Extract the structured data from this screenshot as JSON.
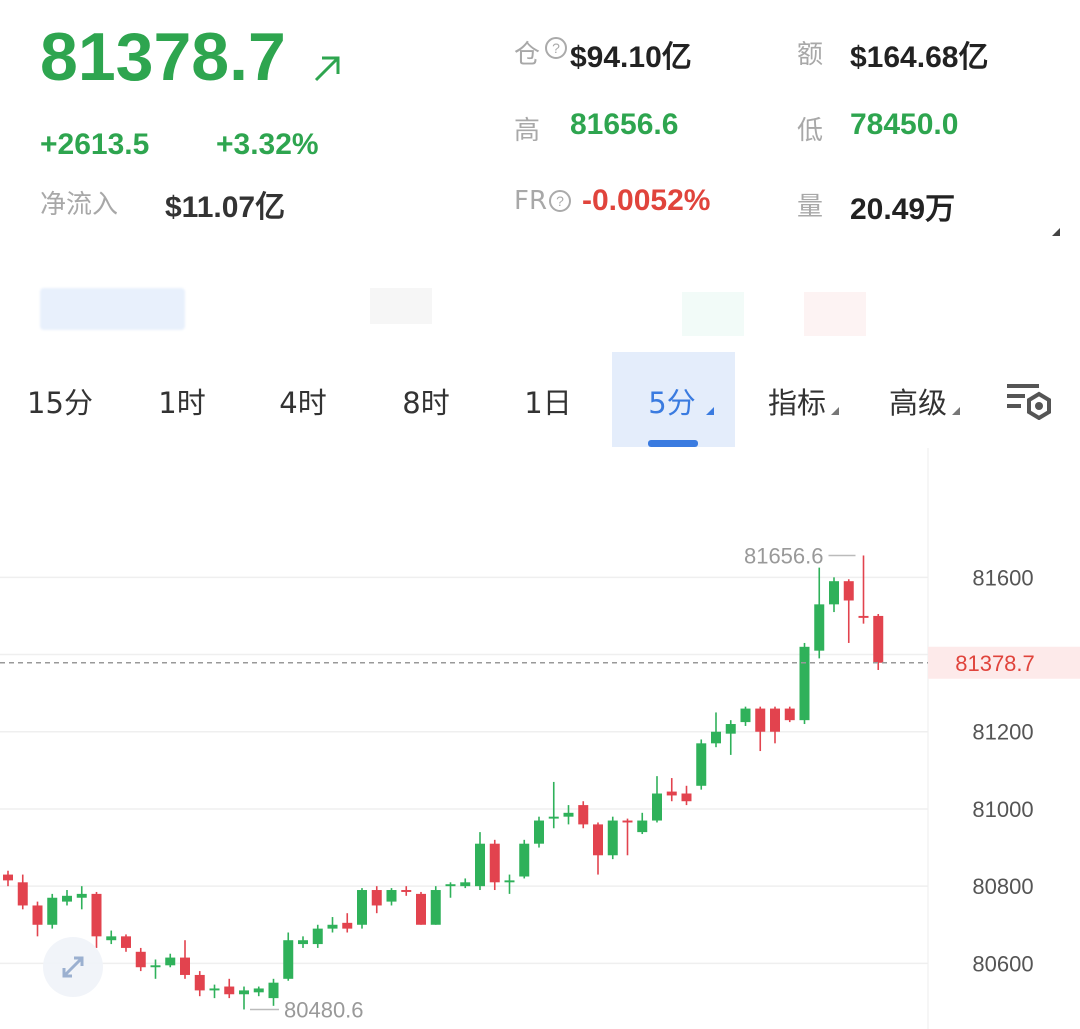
{
  "header": {
    "price": 81378.7,
    "change": "+2613.5",
    "change_pct": "+3.32%",
    "net_inflow_label": "净流入",
    "net_inflow": "$11.07亿",
    "stats": [
      {
        "label": "仓",
        "value": "$94.10亿",
        "color": "#222222"
      },
      {
        "label": "额",
        "value": "$164.68亿",
        "color": "#222222"
      },
      {
        "label": "高",
        "value": "81656.6",
        "color": "#2ea54f"
      },
      {
        "label": "低",
        "value": "78450.0",
        "color": "#2ea54f"
      },
      {
        "label": "FR",
        "value": "-0.0052%",
        "color": "#e0443c"
      },
      {
        "label": "量",
        "value": "20.49万",
        "color": "#222222"
      }
    ]
  },
  "tabs": [
    "15分",
    "1时",
    "4时",
    "8时",
    "1日",
    "5分",
    "指标",
    "高级"
  ],
  "active_tab": 5,
  "chart_data": {
    "type": "candlestick",
    "open": [
      80830,
      80810,
      80750,
      80700,
      80760,
      80770,
      80780,
      80660,
      80670,
      80630,
      80590,
      80595,
      80615,
      80570,
      80530,
      80540,
      80520,
      80525,
      80510,
      80560,
      80650,
      80650,
      80690,
      80705,
      80700,
      80790,
      80760,
      80790,
      80780,
      80700,
      80800,
      80800,
      80800,
      80910,
      80810,
      80825,
      80910,
      80975,
      80980,
      81010,
      80960,
      80880,
      80970,
      80940,
      80970,
      81045,
      81040,
      81060,
      81170,
      81195,
      81225,
      81260,
      81260,
      81260,
      81230,
      81410,
      81530,
      81590,
      81500,
      81500
    ],
    "high": [
      80840,
      80830,
      80760,
      80780,
      80790,
      80800,
      80785,
      80685,
      80675,
      80640,
      80610,
      80625,
      80660,
      80580,
      80545,
      80560,
      80540,
      80540,
      80560,
      80680,
      80670,
      80700,
      80720,
      80730,
      80795,
      80800,
      80795,
      80800,
      80785,
      80800,
      80810,
      80820,
      80940,
      80920,
      80830,
      80920,
      80980,
      81070,
      81010,
      81020,
      80965,
      80980,
      80975,
      80990,
      81085,
      81080,
      81060,
      81180,
      81250,
      81230,
      81265,
      81265,
      81265,
      81265,
      81430,
      81625,
      81600,
      81595,
      81656.6,
      81505
    ],
    "low": [
      80800,
      80740,
      80670,
      80690,
      80750,
      80740,
      80640,
      80650,
      80630,
      80580,
      80560,
      80590,
      80560,
      80515,
      80510,
      80510,
      80480.6,
      80515,
      80490,
      80555,
      80640,
      80640,
      80680,
      80680,
      80690,
      80730,
      80750,
      80775,
      80700,
      80700,
      80770,
      80795,
      80790,
      80790,
      80780,
      80820,
      80900,
      80950,
      80960,
      80950,
      80830,
      80870,
      80880,
      80935,
      80965,
      81020,
      81010,
      81050,
      81160,
      81140,
      81215,
      81150,
      81170,
      81225,
      81220,
      81390,
      81510,
      81430,
      81480,
      81360
    ],
    "close": [
      80815,
      80750,
      80700,
      80770,
      80775,
      80780,
      80670,
      80670,
      80640,
      80590,
      80595,
      80615,
      80570,
      80530,
      80535,
      80520,
      80530,
      80535,
      80550,
      80660,
      80660,
      80690,
      80700,
      80690,
      80790,
      80750,
      80790,
      80785,
      80700,
      80790,
      80805,
      80810,
      80910,
      80810,
      80815,
      80910,
      80970,
      80980,
      80990,
      80960,
      80880,
      80970,
      80965,
      80970,
      81040,
      81035,
      81020,
      81170,
      81200,
      81220,
      81260,
      81200,
      81200,
      81230,
      81420,
      81530,
      81590,
      81540,
      81495,
      81378.7
    ],
    "up_color": "#2fb15a",
    "down_color": "#e2434e",
    "ylim": [
      80430,
      81935
    ],
    "yticks": [
      80600,
      80800,
      81000,
      81200,
      81400,
      81600
    ],
    "grid": true
  }
}
